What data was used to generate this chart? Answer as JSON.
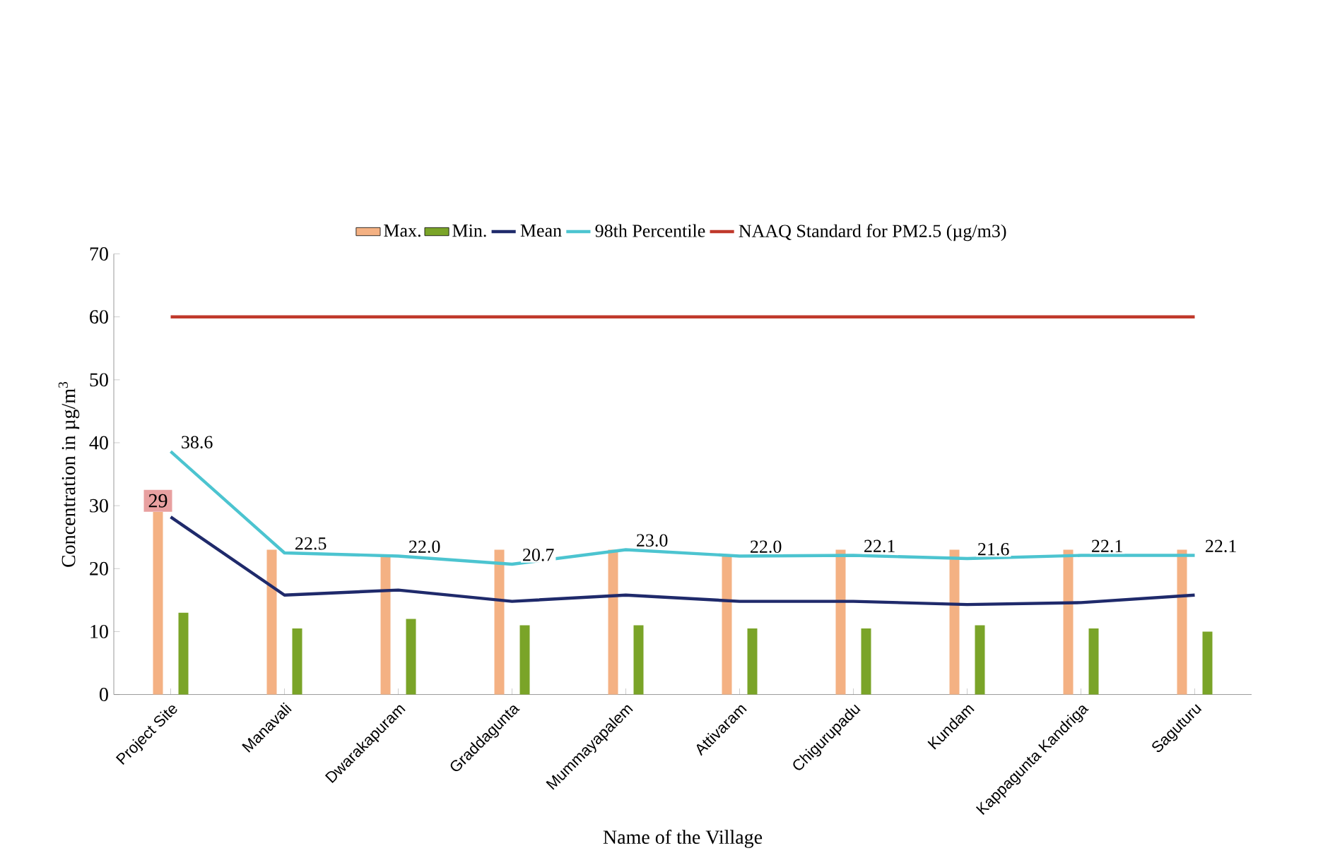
{
  "chart_data": {
    "type": "bar",
    "xlabel": "Name of the Village",
    "ylabel": "Concentration in µg/m$^{3}$",
    "categories": [
      "Project Site",
      "Manavali",
      "Dwarakapuram",
      "Graddagunta",
      "Mummayapalem",
      "Attivaram",
      "Chigurupadu",
      "Kundam",
      "Kappagunta Kandriga",
      "Saguturu"
    ],
    "series": [
      {
        "name": "Max.",
        "color": "#f4b183",
        "values": [
          29,
          23,
          22,
          23,
          23,
          22,
          23,
          23,
          23,
          23
        ],
        "value_labels": [
          "29",
          null,
          null,
          null,
          null,
          null,
          null,
          null,
          null,
          null
        ]
      },
      {
        "name": "Min.",
        "color": "#7aa428",
        "values": [
          13,
          10.5,
          12,
          11,
          11,
          10.5,
          10.5,
          11,
          10.5,
          10
        ]
      },
      {
        "name": "Mean",
        "type": "line",
        "color": "#1f2a6b",
        "values": [
          28.2,
          15.8,
          16.6,
          14.8,
          15.8,
          14.8,
          14.8,
          14.3,
          14.6,
          15.8
        ]
      },
      {
        "name": "98th  Percentile",
        "type": "line",
        "color": "#4cc4d0",
        "values": [
          38.6,
          22.5,
          22.0,
          20.7,
          23.0,
          22.0,
          22.1,
          21.6,
          22.1,
          22.1
        ],
        "value_labels": [
          "38.6",
          "22.5",
          "22.0",
          "20.7",
          "23.0",
          "22.0",
          "22.1",
          "21.6",
          "22.1",
          "22.1"
        ]
      },
      {
        "name": "NAAQ Standard  for PM2.5  (µg/m3)",
        "type": "line",
        "color": "#c0392b",
        "values": [
          60,
          60,
          60,
          60,
          60,
          60,
          60,
          60,
          60,
          60
        ]
      }
    ],
    "ylim": [
      0,
      70
    ],
    "yticks": [
      0,
      10,
      20,
      30,
      40,
      50,
      60,
      70
    ],
    "grid": false,
    "legend": "top",
    "marker": "none",
    "line_style": "solid"
  }
}
